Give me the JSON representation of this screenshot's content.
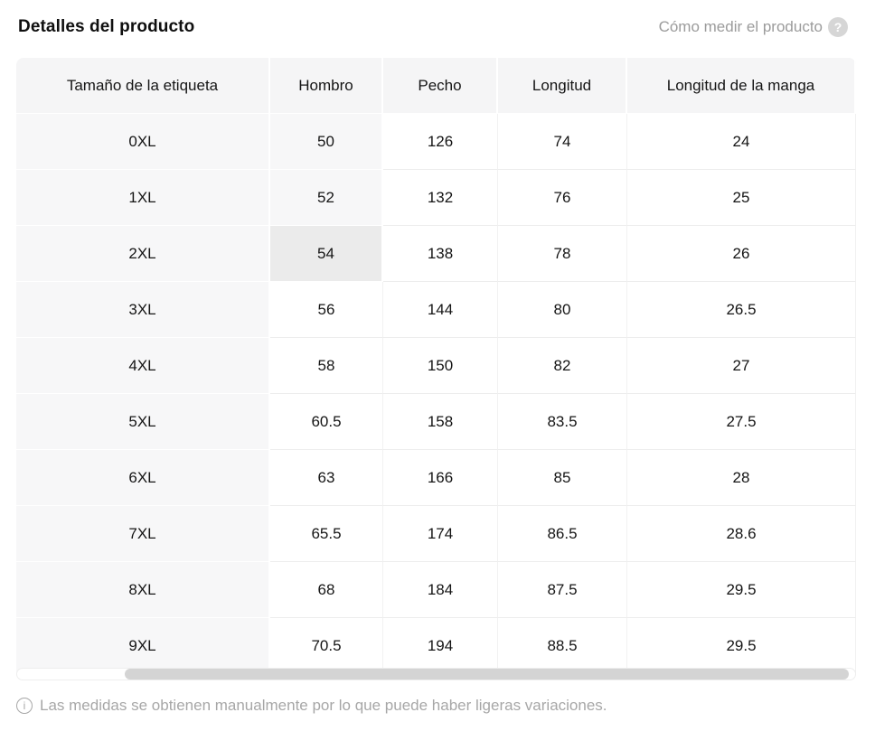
{
  "header": {
    "title": "Detalles del producto",
    "help_label": "Cómo medir el producto",
    "help_icon_glyph": "?"
  },
  "size_table": {
    "columns": [
      "Tamaño de la etiqueta",
      "Hombro",
      "Pecho",
      "Longitud",
      "Longitud de la manga"
    ],
    "rows": [
      {
        "label": "0XL",
        "hombro": "50",
        "pecho": "126",
        "longitud": "74",
        "manga": "24",
        "hombro_state": "tinted"
      },
      {
        "label": "1XL",
        "hombro": "52",
        "pecho": "132",
        "longitud": "76",
        "manga": "25",
        "hombro_state": "tinted"
      },
      {
        "label": "2XL",
        "hombro": "54",
        "pecho": "138",
        "longitud": "78",
        "manga": "26",
        "hombro_state": "selected"
      },
      {
        "label": "3XL",
        "hombro": "56",
        "pecho": "144",
        "longitud": "80",
        "manga": "26.5",
        "hombro_state": "normal"
      },
      {
        "label": "4XL",
        "hombro": "58",
        "pecho": "150",
        "longitud": "82",
        "manga": "27",
        "hombro_state": "normal"
      },
      {
        "label": "5XL",
        "hombro": "60.5",
        "pecho": "158",
        "longitud": "83.5",
        "manga": "27.5",
        "hombro_state": "normal"
      },
      {
        "label": "6XL",
        "hombro": "63",
        "pecho": "166",
        "longitud": "85",
        "manga": "28",
        "hombro_state": "normal"
      },
      {
        "label": "7XL",
        "hombro": "65.5",
        "pecho": "174",
        "longitud": "86.5",
        "manga": "28.6",
        "hombro_state": "normal"
      },
      {
        "label": "8XL",
        "hombro": "68",
        "pecho": "184",
        "longitud": "87.5",
        "manga": "29.5",
        "hombro_state": "normal"
      },
      {
        "label": "9XL",
        "hombro": "70.5",
        "pecho": "194",
        "longitud": "88.5",
        "manga": "29.5",
        "hombro_state": "normal"
      }
    ]
  },
  "footer": {
    "note": "Las medidas se obtienen manualmente por lo que puede haber ligeras variaciones.",
    "info_icon_glyph": "i"
  },
  "colors": {
    "header_cell_bg": "#f5f5f6",
    "label_column_bg": "#f7f7f8",
    "selected_cell_bg": "#ebebeb",
    "muted_text": "#9b9b9b",
    "scrollbar_thumb": "#d4d4d4"
  }
}
